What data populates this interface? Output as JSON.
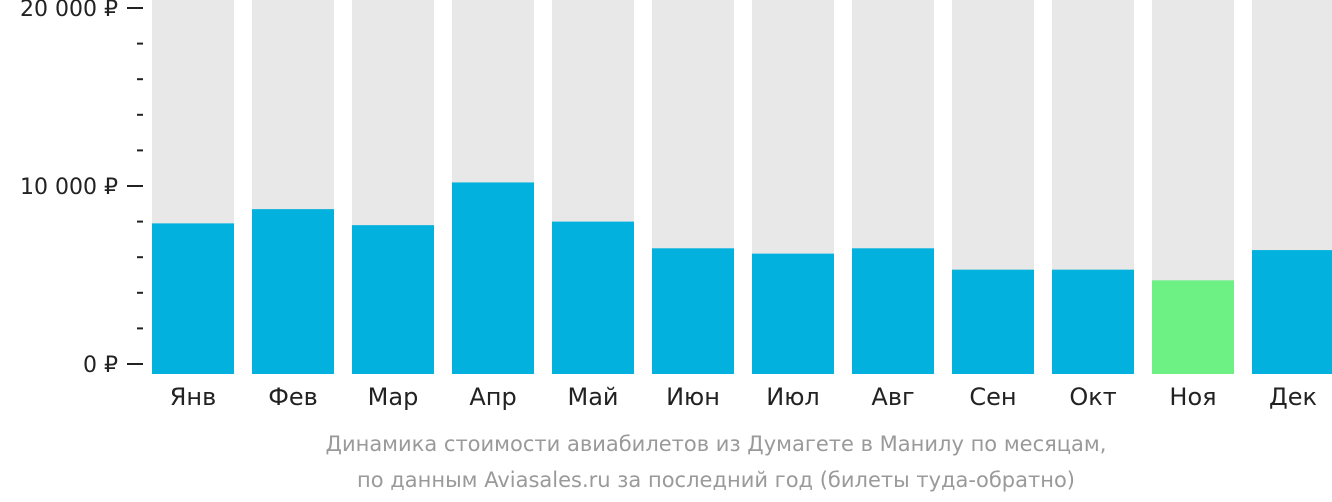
{
  "chart_data": {
    "type": "bar",
    "categories": [
      "Янв",
      "Фев",
      "Мар",
      "Апр",
      "Май",
      "Июн",
      "Июл",
      "Авг",
      "Сен",
      "Окт",
      "Ноя",
      "Дек"
    ],
    "values": [
      7900,
      8700,
      7800,
      10200,
      8000,
      6500,
      6200,
      6500,
      5300,
      5300,
      4700,
      6400
    ],
    "ylim": [
      0,
      20000
    ],
    "y_ticks": [
      {
        "value": 0,
        "label": "0 ₽"
      },
      {
        "value": 10000,
        "label": "10 000 ₽"
      },
      {
        "value": 20000,
        "label": "20 000 ₽"
      }
    ],
    "y_minor_step": 2000,
    "highlight_index": 10,
    "colors": {
      "bar": "#02b1dd",
      "highlight": "#6df084",
      "track": "#e8e8e8",
      "axis": "#222222"
    }
  },
  "caption": {
    "line1": "Динамика стоимости авиабилетов из Думагете в Манилу по месяцам,",
    "line2": "по данным Aviasales.ru за последний год (билеты туда-обратно)"
  }
}
